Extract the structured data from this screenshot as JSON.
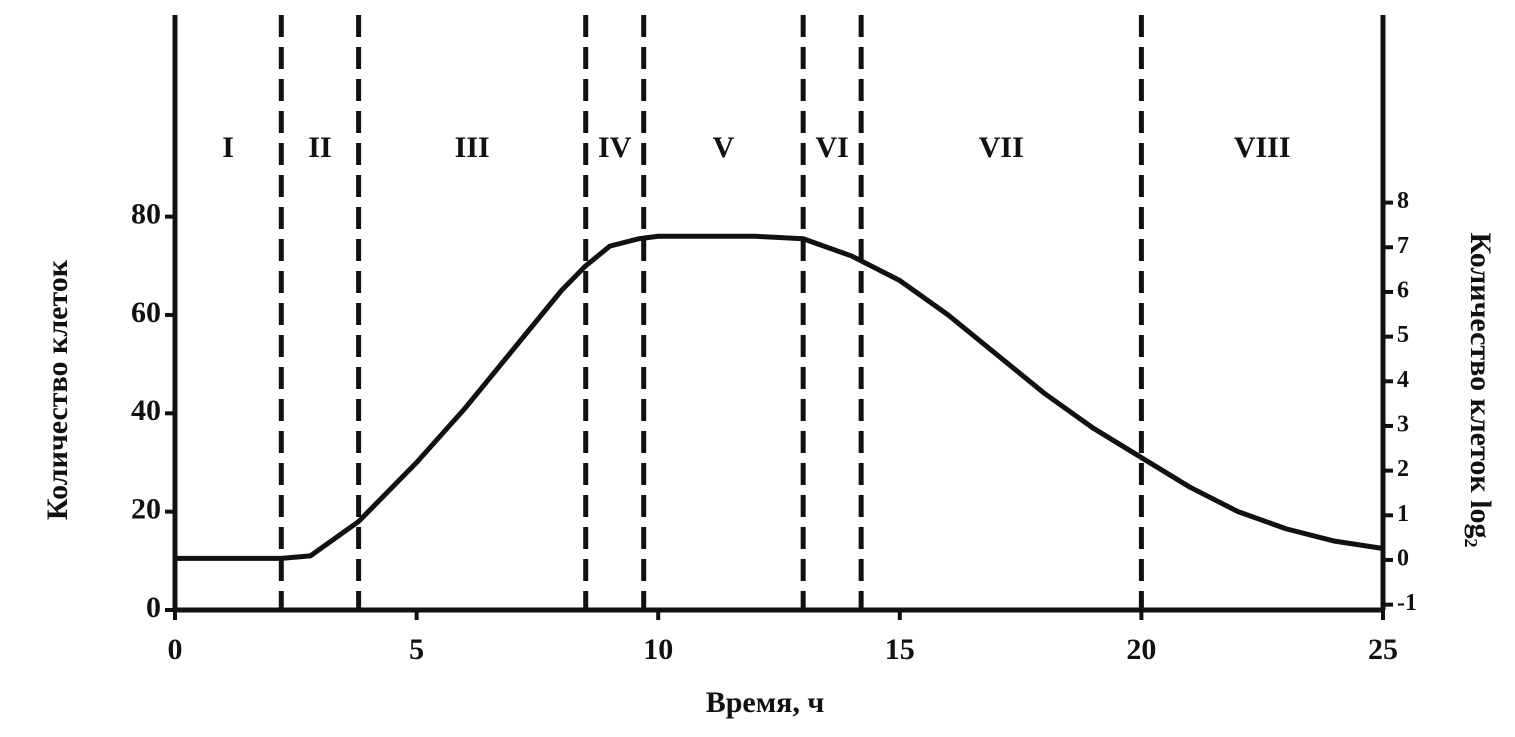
{
  "chart_data": {
    "type": "line",
    "xlabel": "Время, ч",
    "ylabel": "Количество клеток",
    "y2label": "Количество клеток log₂",
    "x": [
      0,
      2.2,
      2.8,
      3.8,
      5,
      6,
      7,
      8,
      8.5,
      9,
      9.6,
      10,
      12,
      13,
      14,
      15,
      16,
      17,
      18,
      19,
      20,
      21,
      22,
      23,
      24,
      25
    ],
    "values": [
      10.5,
      10.5,
      11,
      18,
      30,
      41,
      53,
      65,
      70,
      74,
      75.5,
      76,
      76,
      75.5,
      72,
      67,
      60,
      52,
      44,
      37,
      31,
      25,
      20,
      16.5,
      14,
      12.5
    ],
    "color": "#111111",
    "phase_boundaries": [
      2.2,
      3.8,
      8.5,
      9.7,
      13,
      14.2,
      20
    ],
    "phases": [
      "I",
      "II",
      "III",
      "IV",
      "V",
      "VI",
      "VII",
      "VIII"
    ],
    "xlim": [
      0,
      25
    ],
    "xticks": [
      0,
      5,
      10,
      15,
      20,
      25
    ],
    "ylim": [
      0,
      121
    ],
    "yticks": [
      0,
      20,
      40,
      60,
      80
    ],
    "y2lim": [
      -1.12,
      12.2
    ],
    "y2ticks": [
      -1,
      0,
      1,
      2,
      3,
      4,
      5,
      6,
      7,
      8
    ]
  }
}
